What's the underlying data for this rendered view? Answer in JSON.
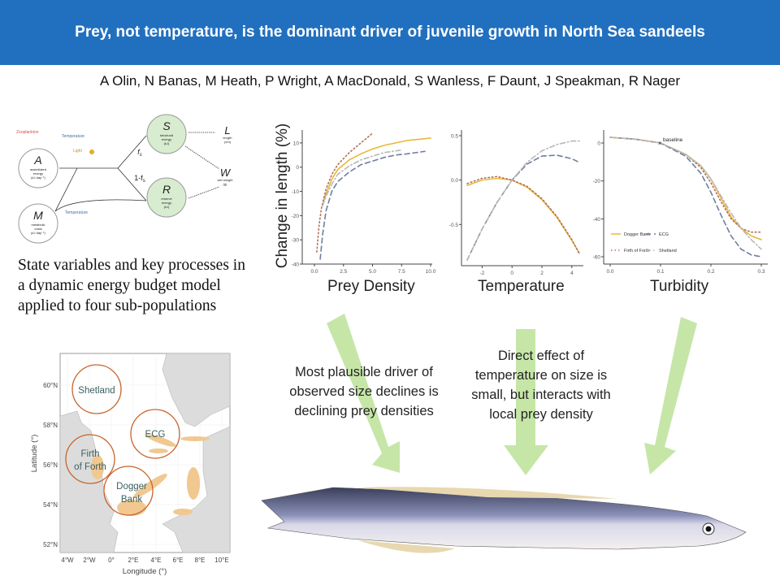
{
  "title": "Prey, not temperature, is the dominant driver of juvenile growth in North Sea sandeels",
  "authors": "A Olin, N Banas, M Heath, P Wright, A MacDonald, S Wanless, F Daunt, J Speakman, R Nager",
  "model_diagram": {
    "drivers": {
      "zooplankton": "Zooplankton",
      "temperature": "Temperature",
      "light": "Light",
      "temperature2": "Temperature"
    },
    "nodes": [
      {
        "symbol": "A",
        "l1": "assimilated",
        "l2": "energy",
        "l3": "(kJ day⁻¹)"
      },
      {
        "symbol": "M",
        "l1": "metabolic",
        "l2": "costs",
        "l3": "(kJ day⁻¹)"
      },
      {
        "symbol": "S",
        "l1": "structural",
        "l2": "energy",
        "l3": "(kJ)"
      },
      {
        "symbol": "R",
        "l1": "reserve",
        "l2": "energy",
        "l3": "(kJ)"
      },
      {
        "symbol": "L",
        "l1": "length",
        "l2": "(cm)"
      },
      {
        "symbol": "W",
        "l1": "wet weight",
        "l2": "(g)"
      }
    ],
    "fs": "f",
    "fs_sub": "s",
    "one_minus": "1-f"
  },
  "caption": "State variables and key processes in a dynamic energy budget model applied to four sub-populations",
  "map": {
    "ylabel": "Latitude (°)",
    "xlabel": "Longitude (°)",
    "yticks": [
      "60°N",
      "58°N",
      "56°N",
      "54°N",
      "52°N"
    ],
    "xticks": [
      "4°W",
      "2°W",
      "0°",
      "2°E",
      "4°E",
      "6°E",
      "8°E",
      "10°E"
    ],
    "regions": [
      "Shetland",
      "ECG",
      "Firth",
      "of Forth",
      "Dogger",
      "Bank"
    ]
  },
  "ylabel": "Change in length (%)",
  "annotations": {
    "prey": "Most plausible driver of observed size declines is declining prey densities",
    "temp": "Direct effect of temperature on size is small, but interacts with local prey density"
  },
  "colors": {
    "header": "#2170c0",
    "arrow": "#c6e6a8",
    "dogger": "#e8b83a",
    "ecg": "#6e7f9e",
    "fof": "#b0705a",
    "shetland": "#b8b8b8",
    "circle": "#c8642a"
  },
  "chart_data": [
    {
      "type": "line",
      "xlabel": "Prey Density",
      "ylabel": "Change in length (%)",
      "xlim": [
        0,
        10
      ],
      "ylim": [
        -40,
        15
      ],
      "xticks": [
        "0.0",
        "2.5",
        "5.0",
        "7.5",
        "10.0"
      ],
      "yticks": [
        "10",
        "0",
        "-10",
        "-20",
        "-30",
        "-40"
      ],
      "series": [
        {
          "name": "Dogger Bank",
          "x": [
            0.8,
            1,
            1.5,
            2,
            3,
            4,
            5,
            6,
            7,
            8,
            9,
            10
          ],
          "y": [
            -14,
            -11,
            -5,
            -1,
            3,
            5.5,
            7.5,
            9,
            10,
            11,
            11.5,
            12
          ]
        },
        {
          "name": "ECG",
          "x": [
            0.5,
            0.7,
            1,
            1.5,
            2,
            3,
            4,
            5,
            6,
            7,
            8,
            9.5
          ],
          "y": [
            -38,
            -28,
            -18,
            -10,
            -6,
            -2,
            1,
            2.5,
            4,
            5,
            5.5,
            6.5
          ]
        },
        {
          "name": "Firth of Forth",
          "x": [
            0.2,
            0.4,
            0.6,
            1,
            1.5,
            2,
            3,
            4,
            5
          ],
          "y": [
            -35,
            -24,
            -17,
            -9,
            -3,
            1,
            6,
            10,
            14
          ]
        },
        {
          "name": "Shetland",
          "x": [
            0.7,
            1,
            1.5,
            2,
            3,
            4,
            5,
            6,
            7.4
          ],
          "y": [
            -16,
            -12,
            -7,
            -3,
            0.5,
            3,
            4.5,
            6,
            7
          ]
        }
      ]
    },
    {
      "type": "line",
      "xlabel": "Temperature",
      "xlim": [
        -3,
        4.5
      ],
      "ylim": [
        -0.9,
        0.5
      ],
      "xticks": [
        "-2",
        "0",
        "2",
        "4"
      ],
      "yticks": [
        "0.5",
        "0.0",
        "-0.5"
      ],
      "series": [
        {
          "name": "Dogger Bank",
          "x": [
            -3,
            -2,
            -1,
            0,
            1,
            2,
            3,
            4,
            4.5
          ],
          "y": [
            -0.06,
            0,
            0.02,
            0,
            -0.08,
            -0.22,
            -0.42,
            -0.68,
            -0.82
          ]
        },
        {
          "name": "ECG",
          "x": [
            -3,
            -2,
            -1,
            0,
            1,
            2,
            3,
            4,
            4.5
          ],
          "y": [
            -0.9,
            -0.55,
            -0.25,
            0,
            0.18,
            0.27,
            0.28,
            0.24,
            0.2
          ]
        },
        {
          "name": "Firth of Forth",
          "x": [
            -3,
            -2,
            -1,
            0,
            1,
            2,
            3,
            4,
            4.5
          ],
          "y": [
            -0.04,
            0.02,
            0.04,
            0,
            -0.07,
            -0.21,
            -0.41,
            -0.67,
            -0.83
          ]
        },
        {
          "name": "Shetland",
          "x": [
            -3,
            -2,
            -1,
            0,
            1,
            2,
            3,
            4,
            4.5
          ],
          "y": [
            -0.9,
            -0.55,
            -0.25,
            0,
            0.2,
            0.33,
            0.4,
            0.44,
            0.44
          ]
        }
      ]
    },
    {
      "type": "line",
      "xlabel": "Turbidity",
      "xlim": [
        0,
        0.3
      ],
      "ylim": [
        -62,
        5
      ],
      "xticks": [
        "0.0",
        "0.1",
        "0.2",
        "0.3"
      ],
      "yticks": [
        "0",
        "-20",
        "-40",
        "-60"
      ],
      "annotation": "baseline",
      "legend": [
        "Dogger Bank",
        "ECG",
        "Firth of Forth",
        "Shetland"
      ],
      "legend_position": "bottom-left",
      "series": [
        {
          "name": "Dogger Bank",
          "x": [
            0,
            0.05,
            0.1,
            0.15,
            0.18,
            0.2,
            0.22,
            0.24,
            0.26,
            0.28,
            0.3
          ],
          "y": [
            3,
            2,
            0,
            -6,
            -12,
            -19,
            -29,
            -39,
            -45,
            -49,
            -51
          ]
        },
        {
          "name": "ECG",
          "x": [
            0,
            0.05,
            0.1,
            0.15,
            0.18,
            0.2,
            0.22,
            0.24,
            0.26,
            0.28,
            0.3
          ],
          "y": [
            3,
            2,
            0,
            -7,
            -16,
            -26,
            -38,
            -49,
            -56,
            -59,
            -60
          ]
        },
        {
          "name": "Firth of Forth",
          "x": [
            0,
            0.05,
            0.1,
            0.15,
            0.18,
            0.2,
            0.22,
            0.24,
            0.26,
            0.28,
            0.3
          ],
          "y": [
            3,
            2,
            0,
            -6,
            -13,
            -21,
            -31,
            -40,
            -45,
            -47,
            -47
          ]
        },
        {
          "name": "Shetland",
          "x": [
            0,
            0.05,
            0.1,
            0.15,
            0.18,
            0.2,
            0.22,
            0.24,
            0.26,
            0.28,
            0.3
          ],
          "y": [
            3,
            2,
            0,
            -6,
            -12,
            -19,
            -28,
            -37,
            -45,
            -51,
            -56
          ]
        }
      ]
    }
  ]
}
